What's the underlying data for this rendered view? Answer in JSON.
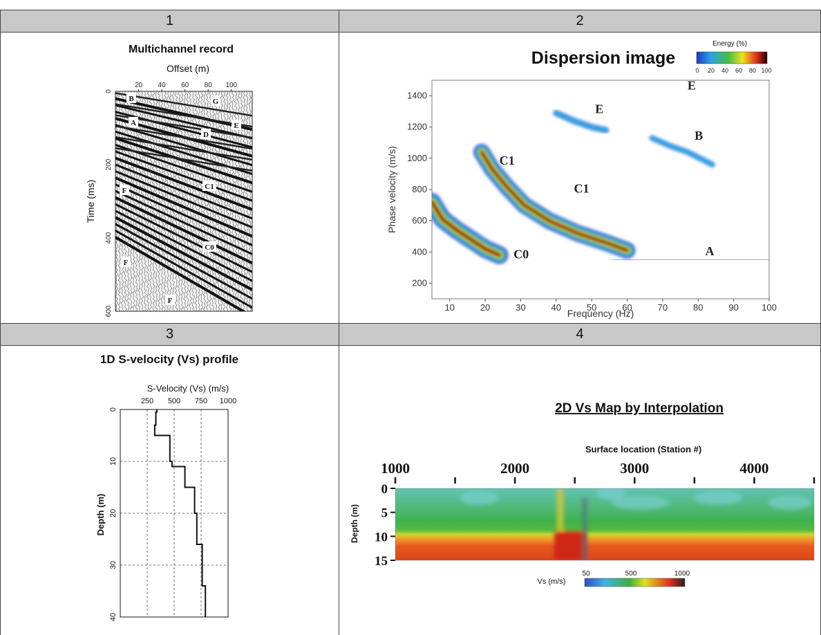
{
  "panels": [
    {
      "number": "1",
      "title": "Multichannel record"
    },
    {
      "number": "2",
      "title": "Dispersion image"
    },
    {
      "number": "3",
      "title": "1D S-velocity (Vs) profile"
    },
    {
      "number": "4",
      "title": "2D Vs Map by Interpolation"
    }
  ],
  "colors": {
    "header_bg": "#c8c8c8",
    "energy_scale": [
      "#2038c0",
      "#30a0e8",
      "#40c040",
      "#f0e020",
      "#e03020",
      "#200000"
    ],
    "vs_scale": [
      "#3050c0",
      "#40b0e0",
      "#40b040",
      "#e0e020",
      "#e03020",
      "#202020"
    ]
  },
  "chart_data": [
    {
      "type": "other",
      "title": "Multichannel record",
      "xlabel": "Offset (m)",
      "ylabel": "Time (ms)",
      "x_ticks": [
        "20",
        "40",
        "60",
        "80",
        "100"
      ],
      "y_ticks": [
        "0",
        "200",
        "400",
        "600"
      ],
      "annotations": [
        "B",
        "G",
        "A",
        "E",
        "D",
        "F",
        "C1",
        "C0",
        "F",
        "F"
      ]
    },
    {
      "type": "heatmap",
      "title": "Dispersion image",
      "xlabel": "Frequency (Hz)",
      "ylabel": "Phase velocity (m/s)",
      "xlim": [
        5,
        100
      ],
      "ylim": [
        100,
        1500
      ],
      "x_ticks": [
        "10",
        "20",
        "30",
        "40",
        "50",
        "60",
        "70",
        "80",
        "90",
        "100"
      ],
      "y_ticks": [
        "200",
        "400",
        "600",
        "800",
        "1000",
        "1200",
        "1400"
      ],
      "colorbar": {
        "label": "Energy (%)",
        "ticks": [
          "0",
          "20",
          "40",
          "60",
          "80",
          "100"
        ]
      },
      "mode_labels": [
        {
          "text": "C0",
          "x": 28,
          "y": 360
        },
        {
          "text": "C1",
          "x": 24,
          "y": 960
        },
        {
          "text": "C1",
          "x": 45,
          "y": 780
        },
        {
          "text": "A",
          "x": 82,
          "y": 380
        },
        {
          "text": "B",
          "x": 79,
          "y": 1120
        },
        {
          "text": "E",
          "x": 51,
          "y": 1290
        },
        {
          "text": "E",
          "x": 77,
          "y": 1440
        }
      ],
      "series": [
        {
          "name": "C0",
          "points": [
            [
              5,
              720
            ],
            [
              8,
              610
            ],
            [
              12,
              540
            ],
            [
              16,
              480
            ],
            [
              20,
              420
            ],
            [
              24,
              380
            ]
          ]
        },
        {
          "name": "C1",
          "points": [
            [
              19,
              1040
            ],
            [
              22,
              930
            ],
            [
              26,
              820
            ],
            [
              31,
              700
            ],
            [
              38,
              600
            ],
            [
              46,
              520
            ],
            [
              54,
              460
            ],
            [
              60,
              410
            ]
          ]
        },
        {
          "name": "A",
          "points": [
            [
              56,
              350
            ],
            [
              70,
              352
            ],
            [
              85,
              352
            ],
            [
              100,
              352
            ]
          ]
        },
        {
          "name": "B",
          "points": [
            [
              67,
              1130
            ],
            [
              72,
              1080
            ],
            [
              77,
              1040
            ],
            [
              84,
              960
            ]
          ]
        },
        {
          "name": "E",
          "points": [
            [
              40,
              1290
            ],
            [
              45,
              1240
            ],
            [
              50,
              1200
            ],
            [
              54,
              1180
            ]
          ]
        }
      ]
    },
    {
      "type": "line",
      "title": "1D S-velocity (Vs) profile",
      "xlabel": "S-Velocity (Vs) (m/s)",
      "ylabel": "Depth (m)",
      "xlim": [
        0,
        1000
      ],
      "ylim": [
        0,
        40
      ],
      "x_ticks": [
        "250",
        "500",
        "750",
        "1000"
      ],
      "y_ticks": [
        "0",
        "10",
        "20",
        "30",
        "40"
      ],
      "grid": true,
      "series": [
        {
          "points": [
            [
              340,
              0
            ],
            [
              340,
              0.5
            ],
            [
              330,
              0.5
            ],
            [
              330,
              3
            ],
            [
              320,
              3
            ],
            [
              320,
              5
            ],
            [
              460,
              5
            ],
            [
              460,
              10
            ],
            [
              480,
              10
            ],
            [
              480,
              11
            ],
            [
              600,
              11
            ],
            [
              600,
              15
            ],
            [
              690,
              15
            ],
            [
              690,
              20
            ],
            [
              710,
              20
            ],
            [
              710,
              26
            ],
            [
              760,
              26
            ],
            [
              760,
              34
            ],
            [
              790,
              34
            ],
            [
              790,
              40
            ]
          ]
        }
      ]
    },
    {
      "type": "heatmap",
      "title": "2D Vs Map by Interpolation",
      "xlabel": "Surface location (Station #)",
      "ylabel": "Depth (m)",
      "xlim": [
        1000,
        4500
      ],
      "ylim": [
        0,
        15
      ],
      "x_ticks": [
        "1000",
        "2000",
        "3000",
        "4000"
      ],
      "y_ticks": [
        "0",
        "5",
        "10",
        "15"
      ],
      "colorbar": {
        "label": "Vs (m/s)",
        "ticks": [
          "50",
          "500",
          "1000"
        ]
      }
    }
  ]
}
